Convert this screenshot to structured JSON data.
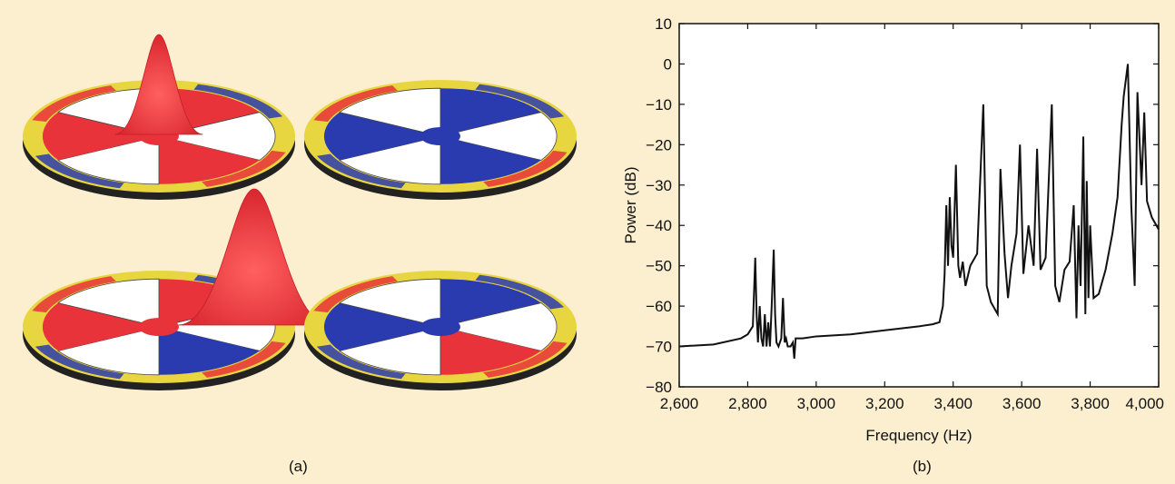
{
  "panels": {
    "a_label": "(a)",
    "b_label": "(b)"
  },
  "wheels": [
    {
      "name": "wheel-top-left",
      "colors": {
        "hub": "red",
        "segments": [
          "red",
          "blue",
          "red",
          "blue",
          "red",
          "blue"
        ]
      }
    },
    {
      "name": "wheel-top-right",
      "colors": {
        "hub": "blue",
        "segments": [
          "blue",
          "red",
          "blue",
          "red",
          "blue",
          "red"
        ]
      }
    },
    {
      "name": "wheel-bottom-left",
      "colors": {
        "hub": "red",
        "segments": [
          "red",
          "yellow",
          "blue",
          "yellow",
          "red",
          "yellow"
        ]
      }
    },
    {
      "name": "wheel-bottom-right",
      "colors": {
        "hub": "blue",
        "segments": [
          "blue",
          "yellow",
          "red",
          "yellow",
          "blue",
          "yellow"
        ]
      }
    }
  ],
  "palette": {
    "red": "#e8333a",
    "blue": "#2a3bb0",
    "yellow": "#e8d640",
    "rim": "#222222",
    "line": "#111111",
    "background": "#fbefd0",
    "plot_bg": "#ffffff"
  },
  "chart_data": {
    "type": "line",
    "title": "",
    "xlabel": "Frequency (Hz)",
    "ylabel": "Power (dB)",
    "xlim": [
      2600,
      4000
    ],
    "ylim": [
      -80,
      10
    ],
    "xticks": [
      2600,
      2800,
      3000,
      3200,
      3400,
      3600,
      3800,
      4000
    ],
    "xtick_labels": [
      "2,600",
      "2,800",
      "3,000",
      "3,200",
      "3,400",
      "3,600",
      "3,800",
      "4,000"
    ],
    "yticks": [
      10,
      0,
      -10,
      -20,
      -30,
      -40,
      -50,
      -60,
      -70,
      -80
    ],
    "ytick_labels": [
      "10",
      "0",
      "−10",
      "−20",
      "−30",
      "−40",
      "−50",
      "−60",
      "−70",
      "−80"
    ],
    "grid": false,
    "series": [
      {
        "x": [
          2600,
          2700,
          2780,
          2800,
          2815,
          2822,
          2826,
          2830,
          2835,
          2840,
          2845,
          2850,
          2855,
          2860,
          2865,
          2870,
          2876,
          2880,
          2884,
          2890,
          2898,
          2903,
          2908,
          2912,
          2917,
          2925,
          2932,
          2936,
          2940,
          2960,
          3000,
          3100,
          3200,
          3300,
          3340,
          3360,
          3370,
          3375,
          3380,
          3385,
          3390,
          3395,
          3400,
          3408,
          3415,
          3420,
          3428,
          3436,
          3450,
          3470,
          3488,
          3498,
          3510,
          3530,
          3538,
          3550,
          3560,
          3570,
          3585,
          3595,
          3605,
          3620,
          3635,
          3645,
          3655,
          3670,
          3688,
          3698,
          3710,
          3725,
          3740,
          3752,
          3760,
          3766,
          3772,
          3780,
          3786,
          3790,
          3795,
          3800,
          3810,
          3825,
          3845,
          3865,
          3880,
          3892,
          3898,
          3910,
          3920,
          3930,
          3938,
          3950,
          3958,
          3966,
          3980,
          4000
        ],
        "y": [
          -70,
          -69.5,
          -68,
          -67,
          -65,
          -48,
          -62,
          -69,
          -60,
          -68,
          -70,
          -62,
          -70,
          -64,
          -70,
          -60,
          -46,
          -62,
          -69,
          -70,
          -68,
          -58,
          -69,
          -68,
          -70,
          -70,
          -69,
          -73,
          -68,
          -68,
          -67.5,
          -67,
          -66,
          -65,
          -64.5,
          -64,
          -60,
          -52,
          -35,
          -50,
          -33,
          -45,
          -48,
          -25,
          -50,
          -53,
          -49,
          -55,
          -50,
          -47,
          -10,
          -55,
          -59,
          -62,
          -26,
          -47,
          -58,
          -50,
          -42,
          -20,
          -52,
          -40,
          -50,
          -21,
          -51,
          -48,
          -10,
          -55,
          -59,
          -51,
          -49,
          -35,
          -63,
          -40,
          -55,
          -18,
          -62,
          -29,
          -58,
          -40,
          -58,
          -57,
          -51,
          -42,
          -33,
          -15,
          -8,
          0,
          -35,
          -55,
          -7,
          -30,
          -12,
          -34,
          -38,
          -41
        ]
      }
    ]
  }
}
